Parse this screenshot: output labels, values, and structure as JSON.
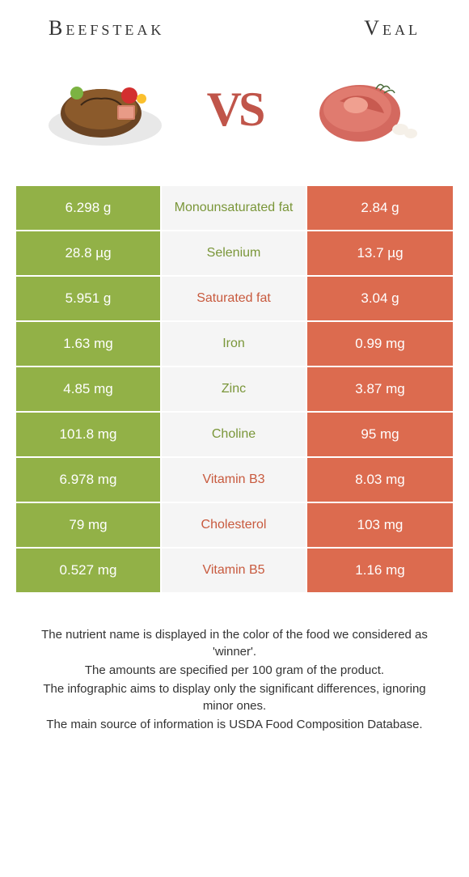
{
  "header": {
    "left_title": "Beefsteak",
    "right_title": "Veal"
  },
  "vs_label": "VS",
  "colors": {
    "left_bg": "#92b147",
    "right_bg": "#dc6b4f",
    "mid_bg": "#f5f5f5",
    "text_white": "#ffffff",
    "winner_left": "#7a9639",
    "winner_right": "#c85a3e",
    "vs_color": "#c0554a"
  },
  "rows": [
    {
      "left": "6.298 g",
      "name": "Monounsaturated fat",
      "right": "2.84 g",
      "winner": "left"
    },
    {
      "left": "28.8 µg",
      "name": "Selenium",
      "right": "13.7 µg",
      "winner": "left"
    },
    {
      "left": "5.951 g",
      "name": "Saturated fat",
      "right": "3.04 g",
      "winner": "right"
    },
    {
      "left": "1.63 mg",
      "name": "Iron",
      "right": "0.99 mg",
      "winner": "left"
    },
    {
      "left": "4.85 mg",
      "name": "Zinc",
      "right": "3.87 mg",
      "winner": "left"
    },
    {
      "left": "101.8 mg",
      "name": "Choline",
      "right": "95 mg",
      "winner": "left"
    },
    {
      "left": "6.978 mg",
      "name": "Vitamin B3",
      "right": "8.03 mg",
      "winner": "right"
    },
    {
      "left": "79 mg",
      "name": "Cholesterol",
      "right": "103 mg",
      "winner": "right"
    },
    {
      "left": "0.527 mg",
      "name": "Vitamin B5",
      "right": "1.16 mg",
      "winner": "right"
    }
  ],
  "footer": {
    "line1": "The nutrient name is displayed in the color of the food we considered as 'winner'.",
    "line2": "The amounts are specified per 100 gram of the product.",
    "line3": "The infographic aims to display only the significant differences, ignoring minor ones.",
    "line4": "The main source of information is USDA Food Composition Database."
  }
}
